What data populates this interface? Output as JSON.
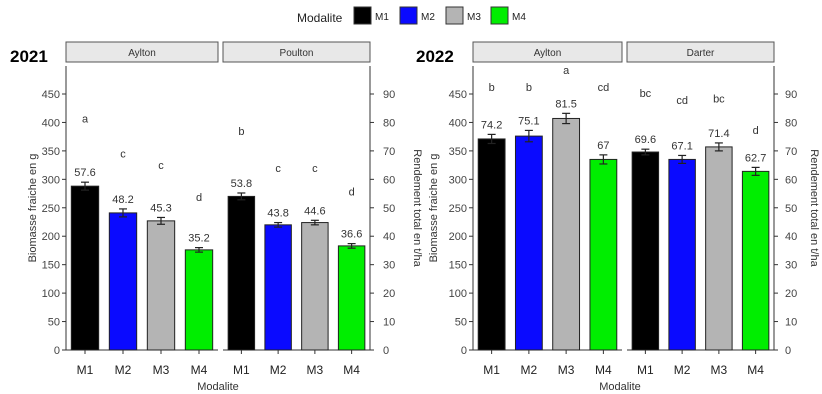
{
  "legend": {
    "title": "Modalite",
    "items": [
      {
        "label": "M1",
        "color": "#000000"
      },
      {
        "label": "M2",
        "color": "#0a0aff"
      },
      {
        "label": "M3",
        "color": "#b4b4b4"
      },
      {
        "label": "M4",
        "color": "#00ee00"
      }
    ]
  },
  "chart_data": [
    {
      "type": "bar",
      "year_label": "2021",
      "xlabel": "Modalite",
      "ylabel": "Biomasse fraiche en g",
      "y2label": "Rendement total en t/ha",
      "ylim": [
        0,
        450
      ],
      "yticks": [
        0,
        50,
        100,
        150,
        200,
        250,
        300,
        350,
        400,
        450
      ],
      "y2ticks": [
        0,
        10,
        20,
        30,
        40,
        50,
        60,
        70,
        80,
        90
      ],
      "categories": [
        "M1",
        "M2",
        "M3",
        "M4"
      ],
      "panels": [
        {
          "name": "Aylton",
          "values": [
            288,
            241,
            227,
            176
          ],
          "errors": [
            7,
            7,
            6,
            4
          ],
          "rendement_labels": [
            "57.6",
            "48.2",
            "45.3",
            "35.2"
          ],
          "letters": [
            "a",
            "c",
            "c",
            "d"
          ],
          "letter_y": [
            400,
            338,
            318,
            262
          ]
        },
        {
          "name": "Poulton",
          "values": [
            270,
            220,
            224,
            183
          ],
          "errors": [
            6,
            4,
            4,
            4
          ],
          "rendement_labels": [
            "53.8",
            "43.8",
            "44.6",
            "36.6"
          ],
          "letters": [
            "b",
            "c",
            "c",
            "d"
          ],
          "letter_y": [
            378,
            313,
            313,
            272
          ]
        }
      ]
    },
    {
      "type": "bar",
      "year_label": "2022",
      "xlabel": "Modalite",
      "ylabel": "Biomasse fraiche en g",
      "y2label": "Rendement total en t/ha",
      "ylim": [
        0,
        450
      ],
      "yticks": [
        0,
        50,
        100,
        150,
        200,
        250,
        300,
        350,
        400,
        450
      ],
      "y2ticks": [
        0,
        10,
        20,
        30,
        40,
        50,
        60,
        70,
        80,
        90
      ],
      "categories": [
        "M1",
        "M2",
        "M3",
        "M4"
      ],
      "panels": [
        {
          "name": "Aylton",
          "values": [
            371,
            376,
            407,
            335
          ],
          "errors": [
            8,
            10,
            9,
            8
          ],
          "rendement_labels": [
            "74.2",
            "75.1",
            "81.5",
            "67"
          ],
          "letters": [
            "b",
            "b",
            "a",
            "cd"
          ],
          "letter_y": [
            455,
            455,
            485,
            455
          ]
        },
        {
          "name": "Darter",
          "values": [
            348,
            335,
            357,
            314
          ],
          "errors": [
            5,
            7,
            7,
            7
          ],
          "rendement_labels": [
            "69.6",
            "67.1",
            "71.4",
            "62.7"
          ],
          "letters": [
            "bc",
            "cd",
            "bc",
            "d"
          ],
          "letter_y": [
            445,
            432,
            435,
            380
          ]
        }
      ]
    }
  ]
}
